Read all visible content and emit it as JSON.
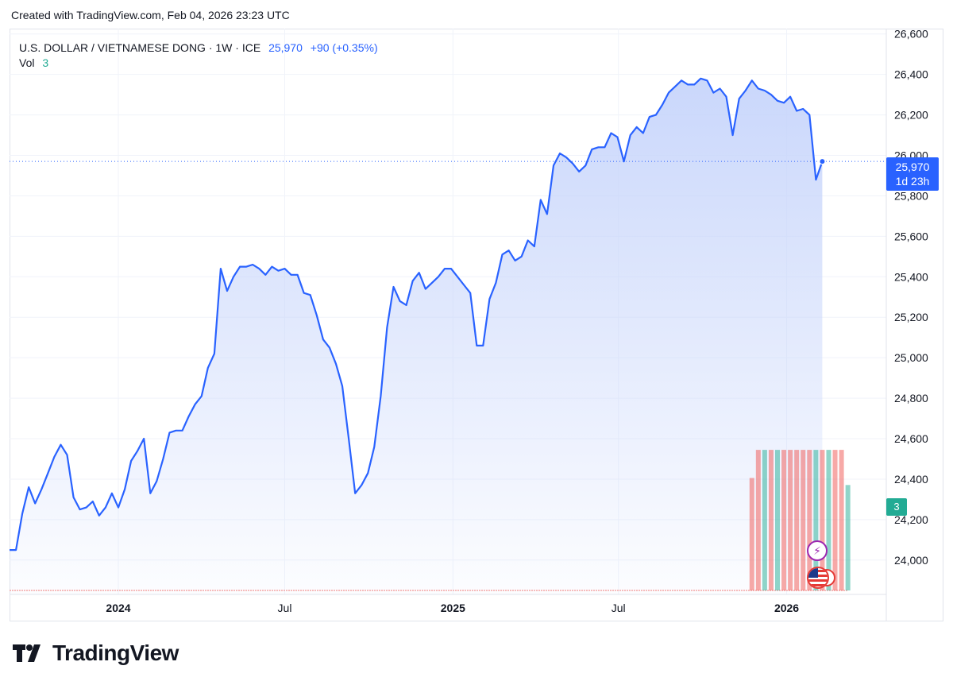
{
  "header": {
    "created_text": "Created with TradingView.com, Feb 04, 2026 23:23 UTC"
  },
  "legend": {
    "symbol": "U.S. DOLLAR / VIETNAMESE DONG · 1W · ICE",
    "last": "25,970",
    "change": "+90 (+0.35%)",
    "vol_label": "Vol",
    "vol_value": "3"
  },
  "price_tag": {
    "value": "25,970",
    "countdown": "1d 23h"
  },
  "vol_tag": "3",
  "brand": {
    "name": "TradingView"
  },
  "colors": {
    "line": "#2962ff",
    "area_top": "#c7d5fb",
    "vol_up": "#22ab94",
    "vol_down": "#ef5350"
  },
  "chart_data": {
    "type": "area",
    "ylim": [
      23850,
      26650
    ],
    "y_ticks": [
      24000,
      24200,
      24400,
      24600,
      24800,
      25000,
      25200,
      25400,
      25600,
      25800,
      26000,
      26200,
      26400,
      26600
    ],
    "y_tick_labels": [
      "24,000",
      "24,200",
      "24,400",
      "24,600",
      "24,800",
      "25,000",
      "25,200",
      "25,400",
      "25,600",
      "25,800",
      "26,000",
      "26,200",
      "26,400",
      "26,600"
    ],
    "x_tick_labels": [
      "2024",
      "Jul",
      "2025",
      "Jul",
      "2026"
    ],
    "x_range": [
      "2023-09-04",
      "2026-04-20"
    ],
    "x_ticks": [
      "2024-01-01",
      "2024-07-01",
      "2025-01-01",
      "2025-07-01",
      "2026-01-01"
    ],
    "series": [
      {
        "values": [
          24050,
          24050,
          24230,
          24360,
          24280,
          24350,
          24430,
          24510,
          24570,
          24520,
          24310,
          24250,
          24260,
          24290,
          24220,
          24260,
          24330,
          24260,
          24350,
          24490,
          24540,
          24600,
          24330,
          24390,
          24500,
          24630,
          24640,
          24640,
          24710,
          24770,
          24810,
          24950,
          25020,
          25440,
          25330,
          25400,
          25450,
          25450,
          25460,
          25440,
          25410,
          25450,
          25430,
          25440,
          25410,
          25410,
          25320,
          25310,
          25210,
          25090,
          25050,
          24970,
          24860,
          24600,
          24330,
          24370,
          24430,
          24560,
          24810,
          25150,
          25350,
          25280,
          25260,
          25380,
          25420,
          25340,
          25370,
          25400,
          25440,
          25440,
          25400,
          25360,
          25320,
          25060,
          25060,
          25290,
          25370,
          25510,
          25530,
          25480,
          25500,
          25580,
          25550,
          25780,
          25710,
          25950,
          26010,
          25990,
          25960,
          25920,
          25950,
          26030,
          26040,
          26040,
          26110,
          26090,
          25970,
          26100,
          26140,
          26110,
          26190,
          26200,
          26250,
          26310,
          26340,
          26370,
          26350,
          26350,
          26380,
          26370,
          26310,
          26330,
          26290,
          26100,
          26280,
          26320,
          26370,
          26330,
          26320,
          26300,
          26270,
          26260,
          26290,
          26220,
          26230,
          26200,
          25880,
          25970
        ]
      }
    ],
    "volume": {
      "ylim": [
        0,
        3.98
      ],
      "series": [
        {
          "label": "Vol",
          "values": [
            0,
            0,
            0,
            0,
            0,
            0,
            0,
            0,
            0,
            0,
            0,
            0,
            0,
            0,
            0,
            0,
            0,
            0,
            0,
            0,
            0,
            0,
            0,
            0,
            0,
            0,
            0,
            0,
            0,
            0,
            0,
            0,
            0,
            0,
            0,
            0,
            0,
            0,
            0,
            0,
            0,
            0,
            0,
            0,
            0,
            0,
            0,
            0,
            0,
            0,
            0,
            0,
            0,
            0,
            0,
            0,
            0,
            0,
            0,
            0,
            0,
            0,
            0,
            0,
            0,
            0,
            0,
            0,
            0,
            0,
            0,
            0,
            0,
            0,
            0,
            0,
            0,
            0,
            0,
            0,
            0,
            0,
            0,
            0,
            0,
            0,
            0,
            0,
            0,
            0,
            0,
            0,
            0,
            0,
            0,
            0,
            0,
            0,
            0,
            0,
            0,
            0,
            0,
            0,
            0,
            0,
            0,
            0,
            0,
            0,
            0,
            0,
            0,
            0,
            0,
            0,
            3.2,
            4,
            4,
            4,
            4,
            4,
            4,
            4,
            4,
            4,
            4,
            4,
            4,
            4,
            4,
            3
          ]
        }
      ],
      "up": [
        false,
        false,
        true,
        false,
        true,
        false,
        false,
        false,
        false,
        false,
        true,
        false,
        true,
        false,
        false,
        true
      ]
    }
  }
}
